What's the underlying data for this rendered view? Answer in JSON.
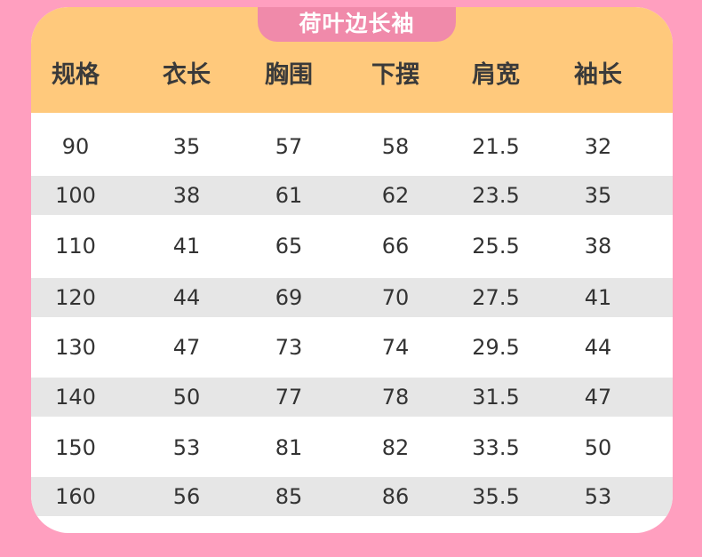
{
  "title": "荷叶边长袖",
  "headers": [
    "规格",
    "衣长",
    "胸围",
    "下摆",
    "肩宽",
    "袖长"
  ],
  "rows": [
    [
      "90",
      "35",
      "57",
      "58",
      "21.5",
      "32"
    ],
    [
      "100",
      "38",
      "61",
      "62",
      "23.5",
      "35"
    ],
    [
      "110",
      "41",
      "65",
      "66",
      "25.5",
      "38"
    ],
    [
      "120",
      "44",
      "69",
      "70",
      "27.5",
      "41"
    ],
    [
      "130",
      "47",
      "73",
      "74",
      "29.5",
      "44"
    ],
    [
      "140",
      "50",
      "77",
      "78",
      "31.5",
      "47"
    ],
    [
      "150",
      "53",
      "81",
      "82",
      "33.5",
      "50"
    ],
    [
      "160",
      "56",
      "85",
      "86",
      "35.5",
      "53"
    ]
  ],
  "colors": {
    "background": "#ff9fbf",
    "header": "#ffc97c",
    "title_tab": "#f08aaa",
    "stripe": "#e6e6e6"
  }
}
